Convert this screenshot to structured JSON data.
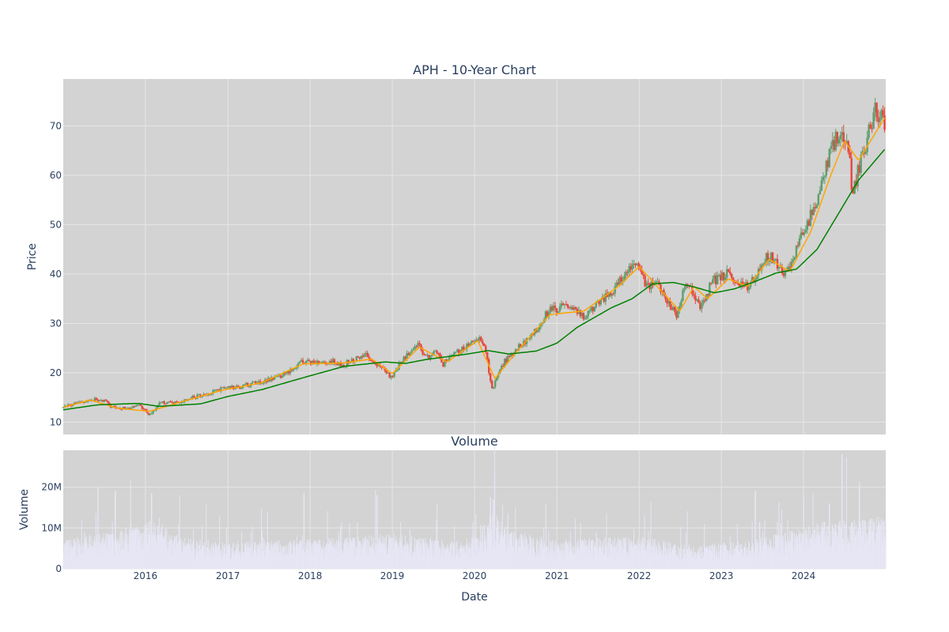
{
  "chart_data": [
    {
      "type": "candlestick",
      "title": "APH - 10-Year Chart",
      "ylabel": "Price",
      "xlabel": "",
      "ylim": [
        7.5,
        79.5
      ],
      "xlim": [
        "2015-01-01",
        "2024-12-31"
      ],
      "grid": true,
      "legend": "none",
      "y_ticks": [
        10,
        20,
        30,
        40,
        50,
        60,
        70
      ],
      "x_ticks": [
        "2016",
        "2017",
        "2018",
        "2019",
        "2020",
        "2021",
        "2022",
        "2023",
        "2024"
      ],
      "price_anchors": [
        [
          "2015-01-01",
          13.0
        ],
        [
          "2015-03-01",
          13.8
        ],
        [
          "2015-05-01",
          14.7
        ],
        [
          "2015-07-01",
          14.2
        ],
        [
          "2015-08-01",
          13.2
        ],
        [
          "2015-09-01",
          12.6
        ],
        [
          "2015-10-01",
          12.8
        ],
        [
          "2015-12-01",
          13.5
        ],
        [
          "2016-01-20",
          11.5
        ],
        [
          "2016-03-01",
          13.8
        ],
        [
          "2016-06-01",
          14.2
        ],
        [
          "2016-09-01",
          15.4
        ],
        [
          "2016-12-01",
          16.7
        ],
        [
          "2017-03-01",
          17.2
        ],
        [
          "2017-06-01",
          18.2
        ],
        [
          "2017-09-01",
          19.6
        ],
        [
          "2017-12-01",
          22.2
        ],
        [
          "2018-03-01",
          22.4
        ],
        [
          "2018-06-01",
          21.8
        ],
        [
          "2018-09-01",
          23.6
        ],
        [
          "2018-10-20",
          22.0
        ],
        [
          "2018-12-24",
          19.0
        ],
        [
          "2019-03-01",
          23.5
        ],
        [
          "2019-05-01",
          25.8
        ],
        [
          "2019-06-01",
          23.0
        ],
        [
          "2019-07-15",
          24.5
        ],
        [
          "2019-08-15",
          21.8
        ],
        [
          "2019-10-01",
          23.8
        ],
        [
          "2020-01-15",
          27.0
        ],
        [
          "2020-02-15",
          25.5
        ],
        [
          "2020-03-20",
          16.5
        ],
        [
          "2020-05-01",
          21.5
        ],
        [
          "2020-06-15",
          24.0
        ],
        [
          "2020-09-01",
          27.0
        ],
        [
          "2020-12-01",
          32.8
        ],
        [
          "2021-03-01",
          33.5
        ],
        [
          "2021-05-01",
          31.5
        ],
        [
          "2021-07-01",
          34.0
        ],
        [
          "2021-10-01",
          38.0
        ],
        [
          "2021-12-20",
          43.0
        ],
        [
          "2022-02-01",
          38.0
        ],
        [
          "2022-04-01",
          37.5
        ],
        [
          "2022-06-15",
          31.5
        ],
        [
          "2022-08-01",
          38.5
        ],
        [
          "2022-10-01",
          33.0
        ],
        [
          "2022-11-20",
          38.5
        ],
        [
          "2023-02-01",
          40.0
        ],
        [
          "2023-04-01",
          38.0
        ],
        [
          "2023-05-01",
          37.0
        ],
        [
          "2023-07-01",
          42.5
        ],
        [
          "2023-08-01",
          44.0
        ],
        [
          "2023-10-01",
          40.0
        ],
        [
          "2023-11-01",
          42.0
        ],
        [
          "2024-01-01",
          49.0
        ],
        [
          "2024-03-01",
          54.0
        ],
        [
          "2024-05-01",
          65.0
        ],
        [
          "2024-06-15",
          69.0
        ],
        [
          "2024-07-15",
          67.0
        ],
        [
          "2024-08-05",
          56.0
        ],
        [
          "2024-09-10",
          63.0
        ],
        [
          "2024-10-01",
          66.0
        ],
        [
          "2024-11-15",
          73.0
        ],
        [
          "2024-12-31",
          71.0
        ]
      ],
      "ma_short_anchors": [
        [
          "2015-01-01",
          13.0
        ],
        [
          "2015-05-01",
          14.5
        ],
        [
          "2015-09-01",
          12.8
        ],
        [
          "2016-01-20",
          12.2
        ],
        [
          "2016-06-01",
          14.0
        ],
        [
          "2016-12-01",
          16.4
        ],
        [
          "2017-06-01",
          18.0
        ],
        [
          "2017-12-01",
          21.8
        ],
        [
          "2018-06-01",
          22.0
        ],
        [
          "2018-10-01",
          22.8
        ],
        [
          "2019-01-01",
          19.8
        ],
        [
          "2019-05-01",
          25.2
        ],
        [
          "2019-09-01",
          22.2
        ],
        [
          "2020-01-15",
          26.5
        ],
        [
          "2020-04-01",
          18.8
        ],
        [
          "2020-07-01",
          24.0
        ],
        [
          "2020-12-01",
          31.8
        ],
        [
          "2021-05-01",
          32.5
        ],
        [
          "2021-10-01",
          37.5
        ],
        [
          "2022-01-01",
          41.5
        ],
        [
          "2022-07-01",
          32.5
        ],
        [
          "2022-09-01",
          37.5
        ],
        [
          "2022-11-01",
          35.0
        ],
        [
          "2023-02-01",
          39.0
        ],
        [
          "2023-05-01",
          37.5
        ],
        [
          "2023-08-01",
          43.0
        ],
        [
          "2023-11-01",
          40.5
        ],
        [
          "2024-02-01",
          48.5
        ],
        [
          "2024-05-01",
          60.0
        ],
        [
          "2024-07-01",
          67.0
        ],
        [
          "2024-09-01",
          63.0
        ],
        [
          "2024-11-01",
          67.5
        ],
        [
          "2024-12-31",
          72.0
        ]
      ],
      "ma_long_anchors": [
        [
          "2015-01-01",
          12.5
        ],
        [
          "2015-06-01",
          13.5
        ],
        [
          "2015-12-01",
          13.8
        ],
        [
          "2016-03-01",
          13.2
        ],
        [
          "2016-09-01",
          13.7
        ],
        [
          "2017-01-01",
          15.2
        ],
        [
          "2017-06-01",
          16.6
        ],
        [
          "2017-12-01",
          19.0
        ],
        [
          "2018-06-01",
          21.3
        ],
        [
          "2018-12-01",
          22.2
        ],
        [
          "2019-03-01",
          21.9
        ],
        [
          "2019-06-01",
          22.7
        ],
        [
          "2019-12-01",
          23.8
        ],
        [
          "2020-03-01",
          24.5
        ],
        [
          "2020-06-01",
          23.8
        ],
        [
          "2020-10-01",
          24.4
        ],
        [
          "2021-01-01",
          26.0
        ],
        [
          "2021-04-01",
          29.2
        ],
        [
          "2021-09-01",
          33.2
        ],
        [
          "2021-12-01",
          35.0
        ],
        [
          "2022-03-01",
          38.0
        ],
        [
          "2022-06-01",
          38.3
        ],
        [
          "2022-09-01",
          37.4
        ],
        [
          "2022-12-01",
          36.2
        ],
        [
          "2023-03-01",
          37.0
        ],
        [
          "2023-06-01",
          38.5
        ],
        [
          "2023-09-01",
          40.2
        ],
        [
          "2023-12-01",
          41.0
        ],
        [
          "2024-03-01",
          45.0
        ],
        [
          "2024-06-01",
          52.0
        ],
        [
          "2024-09-01",
          59.0
        ],
        [
          "2024-12-31",
          65.5
        ]
      ]
    },
    {
      "type": "bar",
      "title": "Volume",
      "ylabel": "Volume",
      "xlabel": "Date",
      "ylim": [
        0,
        29000000
      ],
      "y_ticks": [
        0,
        10000000,
        20000000
      ],
      "y_tick_labels": [
        "0",
        "10M",
        "20M"
      ],
      "x_ticks": [
        "2016",
        "2017",
        "2018",
        "2019",
        "2020",
        "2021",
        "2022",
        "2023",
        "2024"
      ],
      "grid": true,
      "volume_baseline_anchors": [
        [
          "2015-01-01",
          5000000
        ],
        [
          "2015-09-01",
          6500000
        ],
        [
          "2016-01-15",
          8500000
        ],
        [
          "2016-06-01",
          5500000
        ],
        [
          "2017-01-01",
          4500000
        ],
        [
          "2018-01-01",
          5000000
        ],
        [
          "2019-01-01",
          6000000
        ],
        [
          "2019-12-01",
          4500000
        ],
        [
          "2020-03-15",
          10000000
        ],
        [
          "2020-06-01",
          6500000
        ],
        [
          "2021-01-01",
          5000000
        ],
        [
          "2022-01-01",
          5500000
        ],
        [
          "2022-09-01",
          4000000
        ],
        [
          "2023-06-01",
          5000000
        ],
        [
          "2024-04-01",
          8000000
        ],
        [
          "2024-12-31",
          9000000
        ]
      ],
      "volume_spikes": [
        [
          "2015-06-05",
          20000000
        ],
        [
          "2015-08-20",
          19000000
        ],
        [
          "2016-01-28",
          18500000
        ],
        [
          "2017-12-05",
          18500000
        ],
        [
          "2018-10-25",
          18000000
        ],
        [
          "2019-07-20",
          16000000
        ],
        [
          "2020-03-12",
          17500000
        ],
        [
          "2020-03-25",
          17000000
        ],
        [
          "2023-06-01",
          19000000
        ],
        [
          "2024-06-20",
          28000000
        ],
        [
          "2024-04-25",
          16000000
        ]
      ]
    }
  ],
  "colors": {
    "plot_bg": "#d3d3d3",
    "grid": "#e6e6e6",
    "candle_up": "#5f9e6e",
    "candle_down": "#e8463a",
    "ma_short": "#ffa500",
    "ma_long": "#008000",
    "volume": "#e6e6f5",
    "text": "#2a3f5f"
  }
}
